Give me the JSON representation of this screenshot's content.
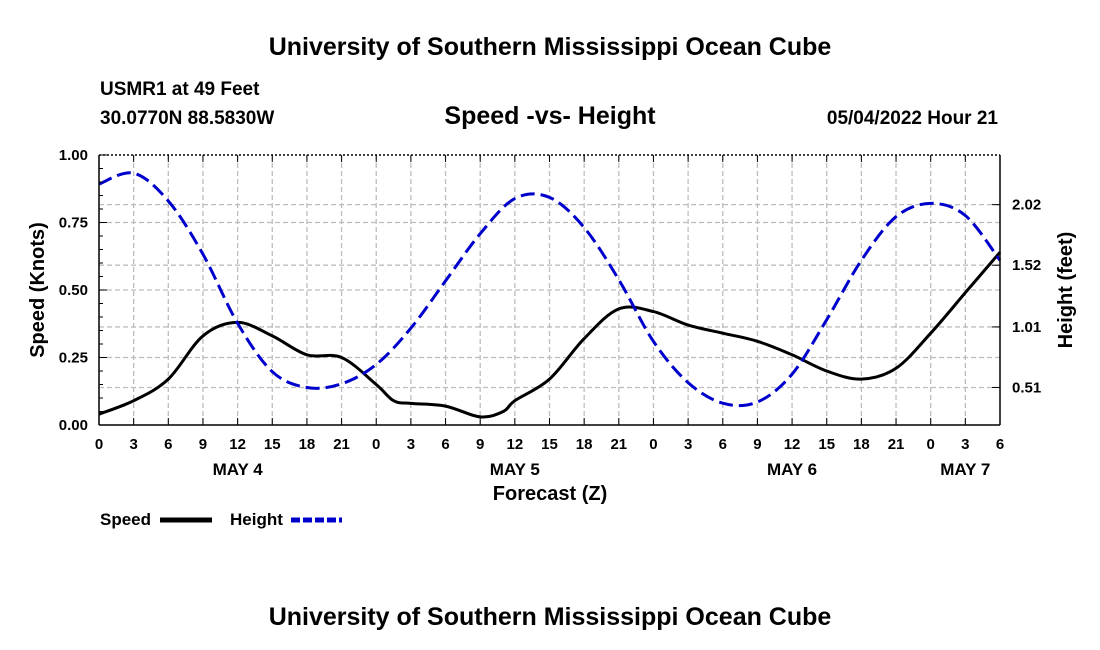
{
  "page": {
    "title_top": "University of Southern Mississippi Ocean Cube",
    "title_bottom": "University of Southern Mississippi Ocean Cube",
    "station": "USMR1 at 49 Feet",
    "location": "30.0770N  88.5830W",
    "timestamp": "05/04/2022 Hour 21"
  },
  "chart_data": {
    "type": "line",
    "title": "Speed -vs- Height",
    "xlabel": "Forecast (Z)",
    "ylabel": "Speed (Knots)",
    "y2label": "Height (feet)",
    "x_unit": "hours since 2022-05-04 00Z",
    "xlim": [
      0,
      78
    ],
    "ylim": [
      0,
      1
    ],
    "y2lim": [
      0.2,
      2.43
    ],
    "x_ticks": [
      0,
      3,
      6,
      9,
      12,
      15,
      18,
      21,
      24,
      27,
      30,
      33,
      36,
      39,
      42,
      45,
      48,
      51,
      54,
      57,
      60,
      63,
      66,
      69,
      72,
      75,
      78
    ],
    "x_tick_labels": [
      "0",
      "3",
      "6",
      "9",
      "12",
      "15",
      "18",
      "21",
      "0",
      "3",
      "6",
      "9",
      "12",
      "15",
      "18",
      "21",
      "0",
      "3",
      "6",
      "9",
      "12",
      "15",
      "18",
      "21",
      "0",
      "3",
      "6"
    ],
    "y_ticks": [
      0,
      0.25,
      0.5,
      0.75,
      1.0
    ],
    "y_tick_labels": [
      "0.00",
      "0.25",
      "0.50",
      "0.75",
      "1.00"
    ],
    "y2_ticks": [
      0.51,
      1.01,
      1.52,
      2.02
    ],
    "y2_tick_labels": [
      "0.51",
      "1.01",
      "1.52",
      "2.02"
    ],
    "day_labels": [
      {
        "label": "MAY 4",
        "x": 12
      },
      {
        "label": "MAY 5",
        "x": 36
      },
      {
        "label": "MAY 6",
        "x": 60
      },
      {
        "label": "MAY 7",
        "x": 75
      }
    ],
    "grid": true,
    "series": [
      {
        "name": "Speed",
        "axis": "left",
        "color": "#000000",
        "dash": "solid",
        "x": [
          0,
          3,
          6,
          9,
          12,
          15,
          18,
          21,
          24,
          25.5,
          27,
          30,
          33,
          35,
          36,
          39,
          42,
          45,
          48,
          51,
          54,
          57,
          60,
          63,
          66,
          69,
          72,
          75,
          78
        ],
        "y": [
          0.04,
          0.09,
          0.17,
          0.33,
          0.38,
          0.33,
          0.26,
          0.25,
          0.15,
          0.09,
          0.08,
          0.07,
          0.03,
          0.05,
          0.09,
          0.17,
          0.32,
          0.43,
          0.42,
          0.37,
          0.34,
          0.31,
          0.26,
          0.2,
          0.17,
          0.21,
          0.34,
          0.49,
          0.64
        ]
      },
      {
        "name": "Height",
        "axis": "right",
        "color": "#0000cc",
        "dash": "dashed",
        "x": [
          0,
          3,
          6,
          9,
          12,
          15,
          18,
          21,
          24,
          27,
          30,
          33,
          36,
          39,
          42,
          45,
          48,
          51,
          54,
          57,
          60,
          63,
          66,
          69,
          72,
          75,
          78
        ],
        "y": [
          2.19,
          2.28,
          2.05,
          1.61,
          1.04,
          0.64,
          0.51,
          0.54,
          0.7,
          1.0,
          1.39,
          1.78,
          2.07,
          2.08,
          1.83,
          1.4,
          0.89,
          0.55,
          0.38,
          0.39,
          0.62,
          1.07,
          1.56,
          1.92,
          2.03,
          1.93,
          1.56
        ]
      }
    ],
    "legend": [
      {
        "label": "Speed",
        "color": "#000000",
        "dash": "solid"
      },
      {
        "label": "Height",
        "color": "#0000cc",
        "dash": "dashed"
      }
    ]
  }
}
